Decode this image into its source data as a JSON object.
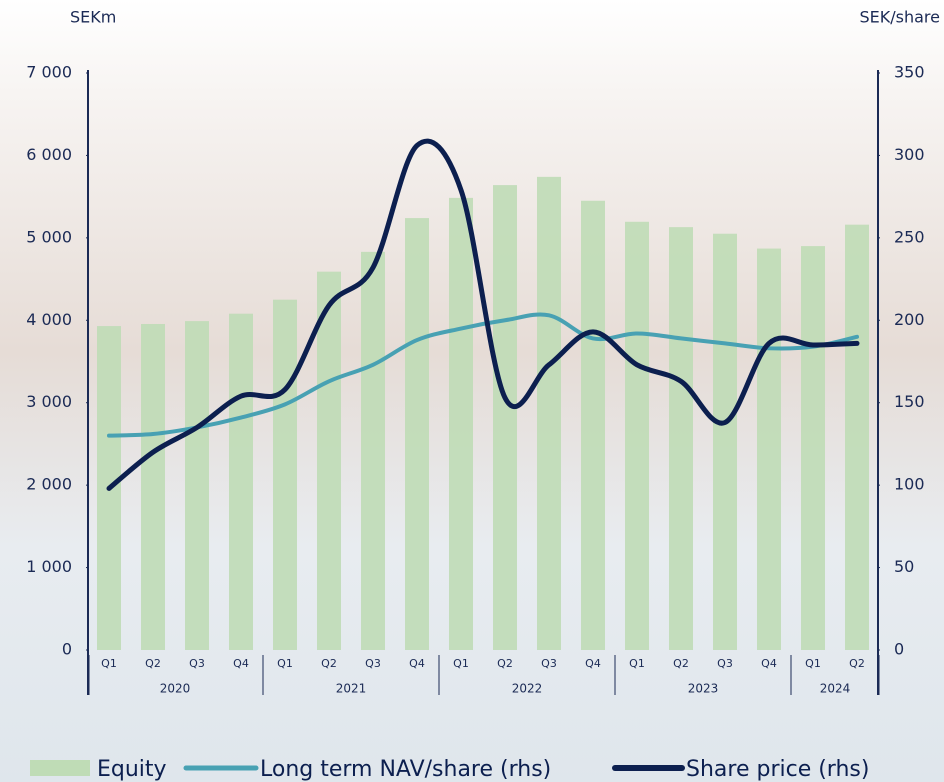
{
  "chart_data": {
    "type": "bar-line",
    "ylabel": "SEKm",
    "y2label": "SEK/share",
    "categories": [
      "Q1",
      "Q2",
      "Q3",
      "Q4",
      "Q1",
      "Q2",
      "Q3",
      "Q4",
      "Q1",
      "Q2",
      "Q3",
      "Q4",
      "Q1",
      "Q2",
      "Q3",
      "Q4",
      "Q1",
      "Q2"
    ],
    "years": [
      {
        "label": "2020",
        "quarters": 4
      },
      {
        "label": "2021",
        "quarters": 4
      },
      {
        "label": "2022",
        "quarters": 4
      },
      {
        "label": "2023",
        "quarters": 4
      },
      {
        "label": "2024",
        "quarters": 2
      }
    ],
    "ylim": [
      0,
      7000
    ],
    "yticks": [
      0,
      {
        "value": 1000,
        "label": "1 000"
      },
      {
        "value": 2000,
        "label": "2 000"
      },
      {
        "value": 3000,
        "label": "3 000"
      },
      {
        "value": 4000,
        "label": "4 000"
      },
      {
        "value": 5000,
        "label": "5 000"
      },
      {
        "value": 6000,
        "label": "6 000"
      },
      {
        "value": 7000,
        "label": "7 000"
      }
    ],
    "y2lim": [
      0,
      350
    ],
    "y2ticks": [
      0,
      50,
      100,
      150,
      200,
      250,
      300,
      350
    ],
    "series": [
      {
        "name": "Equity",
        "type": "bar",
        "color": "#bfdcb6",
        "values": [
          3930,
          3955,
          3990,
          4080,
          4250,
          4590,
          4830,
          5240,
          5485,
          5640,
          5740,
          5450,
          5195,
          5130,
          5050,
          4870,
          4900,
          5160
        ]
      },
      {
        "name": "Long term NAV/share (rhs)",
        "type": "line",
        "axis": "y2",
        "color": "#48a1b3",
        "values": [
          130,
          131,
          135,
          141,
          149,
          163,
          173,
          188,
          195,
          200,
          203,
          189,
          192,
          189,
          186,
          183,
          184,
          190
        ]
      },
      {
        "name": "Share price (rhs)",
        "type": "line",
        "axis": "y2",
        "color": "#0c1f4f",
        "values": [
          98,
          120,
          135,
          154,
          158,
          209,
          232,
          306,
          279,
          153,
          173,
          193,
          173,
          163,
          138,
          186,
          185,
          186
        ]
      }
    ]
  }
}
